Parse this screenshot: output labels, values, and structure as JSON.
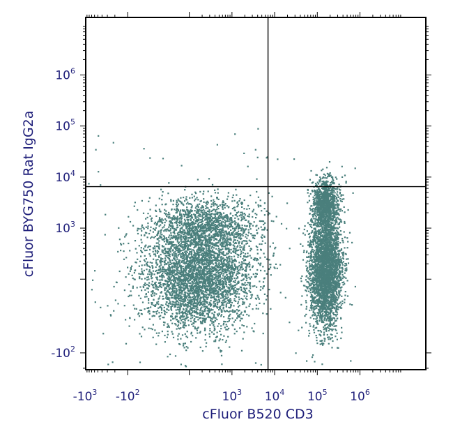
{
  "chart_data": {
    "type": "scatter",
    "title": "",
    "xlabel": "cFluor B520 CD3",
    "ylabel": "cFluor BYG750 Rat IgG2a",
    "x_scale": "biexponential",
    "y_scale": "biexponential",
    "x_ticks": [
      {
        "value": -1000,
        "base": "-10",
        "exp": "3"
      },
      {
        "value": -100,
        "base": "-10",
        "exp": "2"
      },
      {
        "value": 1000,
        "base": "10",
        "exp": "3"
      },
      {
        "value": 10000,
        "base": "10",
        "exp": "4"
      },
      {
        "value": 100000,
        "base": "10",
        "exp": "5"
      },
      {
        "value": 1000000,
        "base": "10",
        "exp": "6"
      }
    ],
    "y_ticks": [
      {
        "value": -100,
        "base": "-10",
        "exp": "2"
      },
      {
        "value": 1000,
        "base": "10",
        "exp": "3"
      },
      {
        "value": 10000,
        "base": "10",
        "exp": "4"
      },
      {
        "value": 100000,
        "base": "10",
        "exp": "5"
      },
      {
        "value": 1000000,
        "base": "10",
        "exp": "6"
      }
    ],
    "quadrant_gates": {
      "x": 7000,
      "y": 6500
    },
    "grid": false,
    "legend": "none",
    "point_color": "#4a7f7c",
    "text_color": "#1f1f7a",
    "series": [
      {
        "populations": [
          {
            "center": [
              150,
              120
            ],
            "count": 3800,
            "approx_range_x": [
              -1000,
              3000
            ],
            "approx_range_y": [
              -300,
              2000
            ]
          },
          {
            "center": [
              250,
              1200
            ],
            "count": 1200,
            "approx_range_x": [
              -500,
              5000
            ],
            "approx_range_y": [
              500,
              20000
            ]
          },
          {
            "center": [
              150000,
              150
            ],
            "count": 3200,
            "approx_range_x": [
              30000,
              400000
            ],
            "approx_range_y": [
              -300,
              2500
            ]
          },
          {
            "center": [
              150000,
              3000
            ],
            "count": 1100,
            "approx_range_x": [
              50000,
              400000
            ],
            "approx_range_y": [
              1000,
              30000
            ]
          },
          {
            "center": [
              2000,
              200
            ],
            "count": 90,
            "approx_range_x": [
              -1000,
              1000000
            ],
            "approx_range_y": [
              -300,
              100000
            ]
          }
        ]
      }
    ]
  }
}
